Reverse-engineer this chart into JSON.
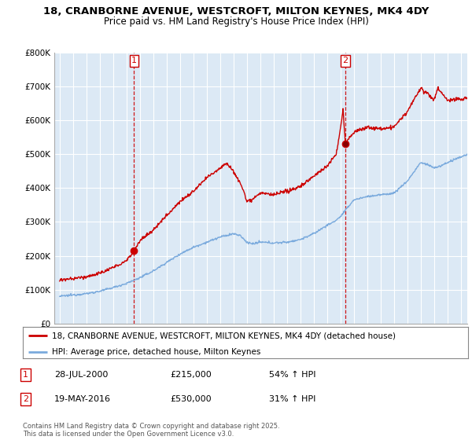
{
  "title": "18, CRANBORNE AVENUE, WESTCROFT, MILTON KEYNES, MK4 4DY",
  "subtitle": "Price paid vs. HM Land Registry's House Price Index (HPI)",
  "ylim": [
    0,
    800000
  ],
  "yticks": [
    0,
    100000,
    200000,
    300000,
    400000,
    500000,
    600000,
    700000,
    800000
  ],
  "ytick_labels": [
    "£0",
    "£100K",
    "£200K",
    "£300K",
    "£400K",
    "£500K",
    "£600K",
    "£700K",
    "£800K"
  ],
  "xlim_start": 1994.6,
  "xlim_end": 2025.5,
  "sale1_x": 2000.57,
  "sale1_y": 215000,
  "sale1_label": "1",
  "sale1_date": "28-JUL-2000",
  "sale1_price": "£215,000",
  "sale1_hpi": "54% ↑ HPI",
  "sale2_x": 2016.38,
  "sale2_y": 530000,
  "sale2_label": "2",
  "sale2_date": "19-MAY-2016",
  "sale2_price": "£530,000",
  "sale2_hpi": "31% ↑ HPI",
  "line_color_house": "#cc0000",
  "line_color_hpi": "#7aaadd",
  "vline_color": "#cc0000",
  "grid_color": "#cccccc",
  "plot_bg_color": "#dce9f5",
  "bg_color": "#ffffff",
  "legend_label_house": "18, CRANBORNE AVENUE, WESTCROFT, MILTON KEYNES, MK4 4DY (detached house)",
  "legend_label_hpi": "HPI: Average price, detached house, Milton Keynes",
  "footnote": "Contains HM Land Registry data © Crown copyright and database right 2025.\nThis data is licensed under the Open Government Licence v3.0.",
  "title_fontsize": 9.5,
  "subtitle_fontsize": 8.5,
  "tick_fontsize": 7.5,
  "legend_fontsize": 7.5
}
